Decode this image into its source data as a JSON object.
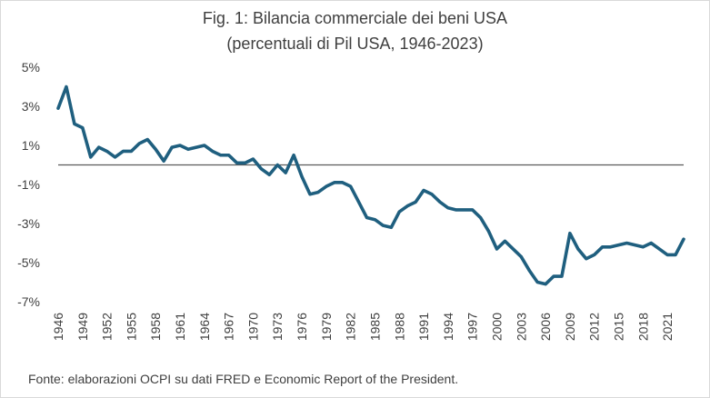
{
  "chart_data": {
    "type": "line",
    "title": "Fig. 1: Bilancia commerciale dei beni USA",
    "subtitle": "(percentuali di Pil USA, 1946-2023)",
    "xlabel": "",
    "ylabel": "",
    "ylim": [
      -7,
      5
    ],
    "y_ticks": [
      5,
      3,
      1,
      -1,
      -3,
      -5,
      -7
    ],
    "y_tick_labels": [
      "5%",
      "3%",
      "1%",
      "-1%",
      "-3%",
      "-5%",
      "-7%"
    ],
    "x_tick_labels": [
      "1946",
      "1949",
      "1952",
      "1955",
      "1958",
      "1961",
      "1964",
      "1967",
      "1970",
      "1973",
      "1976",
      "1979",
      "1982",
      "1985",
      "1988",
      "1991",
      "1994",
      "1997",
      "2000",
      "2003",
      "2006",
      "2009",
      "2012",
      "2015",
      "2018",
      "2021"
    ],
    "grid": false,
    "zero_line": true,
    "line_color": "#1f5f7f",
    "x": [
      1946,
      1947,
      1948,
      1949,
      1950,
      1951,
      1952,
      1953,
      1954,
      1955,
      1956,
      1957,
      1958,
      1959,
      1960,
      1961,
      1962,
      1963,
      1964,
      1965,
      1966,
      1967,
      1968,
      1969,
      1970,
      1971,
      1972,
      1973,
      1974,
      1975,
      1976,
      1977,
      1978,
      1979,
      1980,
      1981,
      1982,
      1983,
      1984,
      1985,
      1986,
      1987,
      1988,
      1989,
      1990,
      1991,
      1992,
      1993,
      1994,
      1995,
      1996,
      1997,
      1998,
      1999,
      2000,
      2001,
      2002,
      2003,
      2004,
      2005,
      2006,
      2007,
      2008,
      2009,
      2010,
      2011,
      2012,
      2013,
      2014,
      2015,
      2016,
      2017,
      2018,
      2019,
      2020,
      2021,
      2022,
      2023
    ],
    "series": [
      {
        "values": [
          2.9,
          4.0,
          2.1,
          1.9,
          0.4,
          0.9,
          0.7,
          0.4,
          0.7,
          0.7,
          1.1,
          1.3,
          0.8,
          0.2,
          0.9,
          1.0,
          0.8,
          0.9,
          1.0,
          0.7,
          0.5,
          0.5,
          0.1,
          0.1,
          0.3,
          -0.2,
          -0.5,
          0.0,
          -0.4,
          0.5,
          -0.6,
          -1.5,
          -1.4,
          -1.1,
          -0.9,
          -0.9,
          -1.1,
          -1.9,
          -2.7,
          -2.8,
          -3.1,
          -3.2,
          -2.4,
          -2.1,
          -1.9,
          -1.3,
          -1.5,
          -1.9,
          -2.2,
          -2.3,
          -2.3,
          -2.3,
          -2.7,
          -3.4,
          -4.3,
          -3.9,
          -4.3,
          -4.7,
          -5.4,
          -6.0,
          -6.1,
          -5.7,
          -5.7,
          -3.5,
          -4.3,
          -4.8,
          -4.6,
          -4.2,
          -4.2,
          -4.1,
          -4.0,
          -4.1,
          -4.2,
          -4.0,
          -4.3,
          -4.6,
          -4.6,
          -3.8
        ]
      }
    ],
    "source": "Fonte: elaborazioni OCPI su dati FRED e Economic Report of the President."
  }
}
